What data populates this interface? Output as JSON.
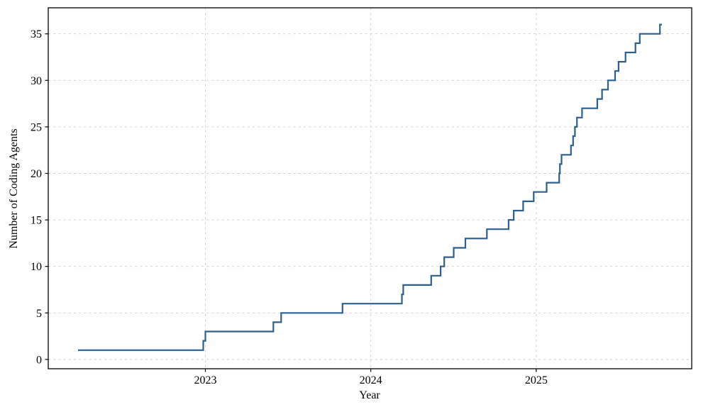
{
  "figure": {
    "background": "#ffffff",
    "text_color": "#000000",
    "spine_color": "#000000"
  },
  "chart_data": {
    "type": "line",
    "style": "step-post",
    "title": "",
    "xlabel": "Year",
    "ylabel": "Number of Coding Agents",
    "x_tick_values": [
      2023,
      2024,
      2025
    ],
    "x_tick_labels": [
      "2023",
      "2024",
      "2025"
    ],
    "y_tick_values": [
      0,
      5,
      10,
      15,
      20,
      25,
      30,
      35
    ],
    "y_tick_labels": [
      "0",
      "5",
      "10",
      "15",
      "20",
      "25",
      "30",
      "35"
    ],
    "xlim": [
      2022.05,
      2025.94
    ],
    "ylim": [
      -1.0,
      37.8
    ],
    "grid": {
      "show": true,
      "color": "#cccccc",
      "dash": "3 4.2",
      "width": 0.9
    },
    "legend": {
      "show": false
    },
    "line": {
      "color": "#2d5f90",
      "width": 2.2,
      "end_x": 2025.76
    },
    "points": [
      [
        2022.23,
        1
      ],
      [
        2022.987,
        2
      ],
      [
        2023.0,
        3
      ],
      [
        2023.411,
        4
      ],
      [
        2023.458,
        5
      ],
      [
        2023.829,
        6
      ],
      [
        2024.188,
        7
      ],
      [
        2024.196,
        8
      ],
      [
        2024.365,
        9
      ],
      [
        2024.422,
        10
      ],
      [
        2024.444,
        11
      ],
      [
        2024.501,
        12
      ],
      [
        2024.572,
        13
      ],
      [
        2024.702,
        14
      ],
      [
        2024.833,
        15
      ],
      [
        2024.864,
        16
      ],
      [
        2024.921,
        17
      ],
      [
        2024.985,
        18
      ],
      [
        2025.063,
        19
      ],
      [
        2025.139,
        20
      ],
      [
        2025.143,
        21
      ],
      [
        2025.153,
        22
      ],
      [
        2025.21,
        23
      ],
      [
        2025.223,
        24
      ],
      [
        2025.234,
        25
      ],
      [
        2025.246,
        26
      ],
      [
        2025.277,
        27
      ],
      [
        2025.369,
        28
      ],
      [
        2025.398,
        29
      ],
      [
        2025.434,
        30
      ],
      [
        2025.477,
        31
      ],
      [
        2025.498,
        32
      ],
      [
        2025.54,
        33
      ],
      [
        2025.6,
        34
      ],
      [
        2025.626,
        35
      ],
      [
        2025.748,
        36
      ]
    ]
  }
}
